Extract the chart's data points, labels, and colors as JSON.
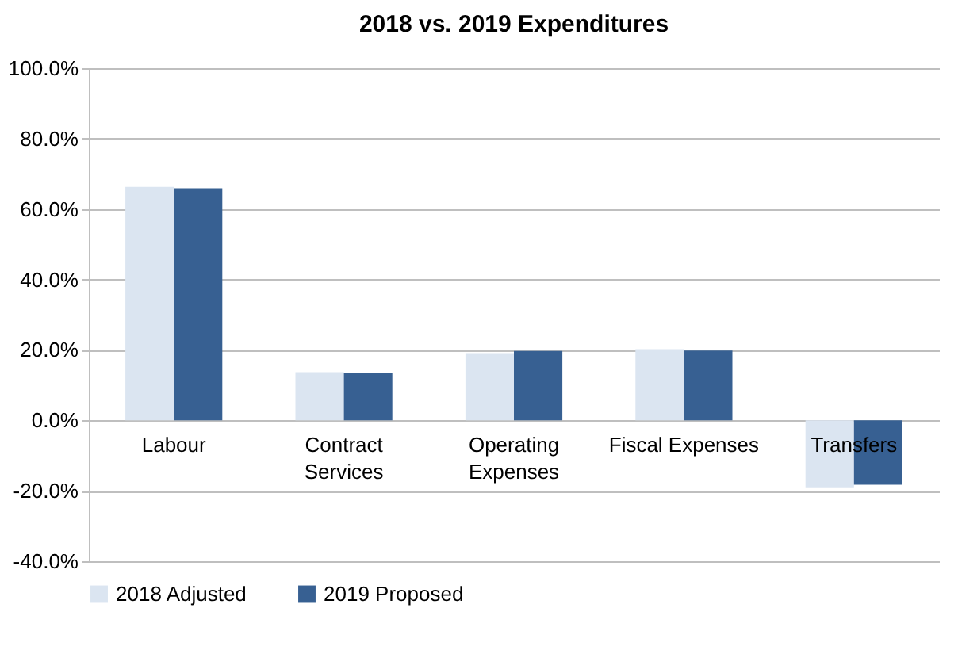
{
  "chart_data": {
    "type": "bar",
    "title": "2018 vs. 2019 Expenditures",
    "categories": [
      "Labour",
      "Contract Services",
      "Operating Expenses",
      "Fiscal Expenses",
      "Transfers"
    ],
    "series": [
      {
        "name": "2018 Adjusted",
        "color": "#dbe5f1",
        "values": [
          66.3,
          13.7,
          19.1,
          20.2,
          -19.0
        ]
      },
      {
        "name": "2019 Proposed",
        "color": "#376092",
        "values": [
          65.9,
          13.4,
          19.7,
          19.8,
          -18.3
        ]
      }
    ],
    "ylim": [
      -40,
      100
    ],
    "yticks": [
      {
        "value": -40,
        "label": "-40.0%"
      },
      {
        "value": -20,
        "label": "-20.0%"
      },
      {
        "value": 0,
        "label": "0.0%"
      },
      {
        "value": 20,
        "label": "20.0%"
      },
      {
        "value": 40,
        "label": "40.0%"
      },
      {
        "value": 60,
        "label": "60.0%"
      },
      {
        "value": 80,
        "label": "80.0%"
      },
      {
        "value": 100,
        "label": "100.0%"
      }
    ],
    "grid": "y",
    "legend": "bottom"
  }
}
